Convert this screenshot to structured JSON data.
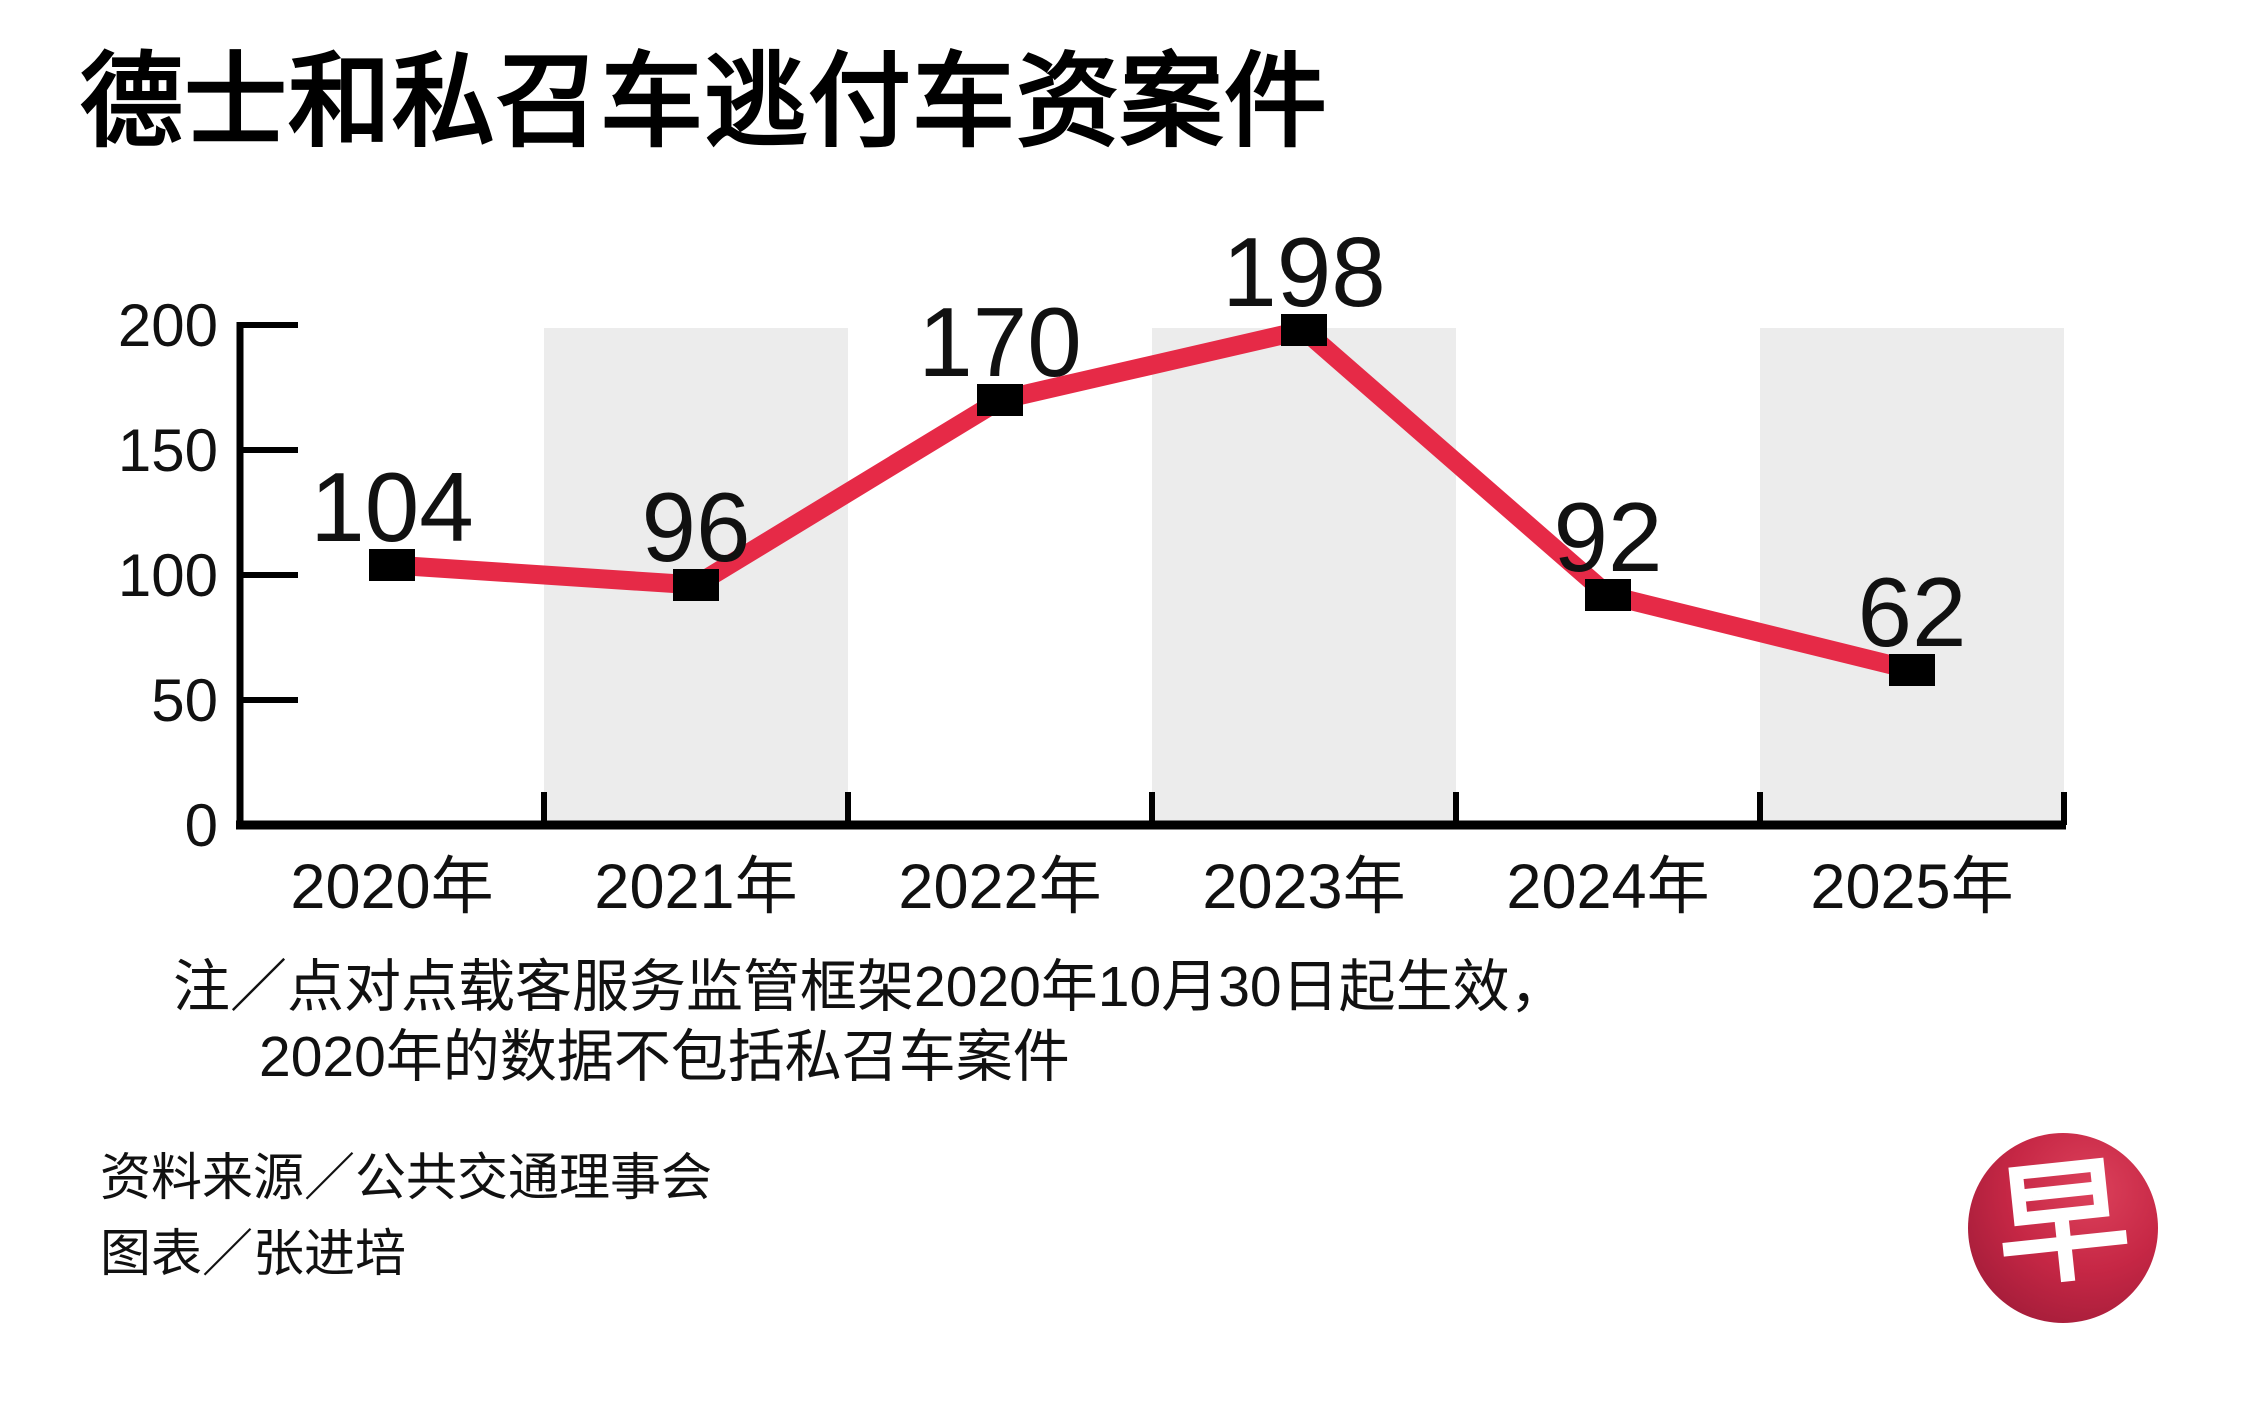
{
  "title": "德士和私召车逃付车资案件",
  "chart_data": {
    "type": "line",
    "categories": [
      "2020年",
      "2021年",
      "2022年",
      "2023年",
      "2024年",
      "2025年"
    ],
    "values": [
      104,
      96,
      170,
      198,
      92,
      62
    ],
    "title": "德士和私召车逃付车资案件",
    "xlabel": "",
    "ylabel": "",
    "ylim": [
      0,
      200
    ],
    "yticks": [
      0,
      50,
      100,
      150,
      200
    ],
    "grid": false,
    "legend": "none",
    "line_color": "#e62a47",
    "marker_color": "#000000",
    "marker_shape": "square",
    "band_color": "#ececec",
    "banded_categories": [
      "2021年",
      "2023年",
      "2025年"
    ],
    "point_labels": [
      "104",
      "96",
      "170",
      "198",
      "92",
      "62"
    ]
  },
  "note": {
    "line1": "注／点对点载客服务监管框架2020年10月30日起生效，",
    "line2": "2020年的数据不包括私召车案件"
  },
  "source": "资料来源／公共交通理事会",
  "credit": "图表／张进培",
  "logo": {
    "char": "早",
    "bg_color": "#c62745"
  }
}
